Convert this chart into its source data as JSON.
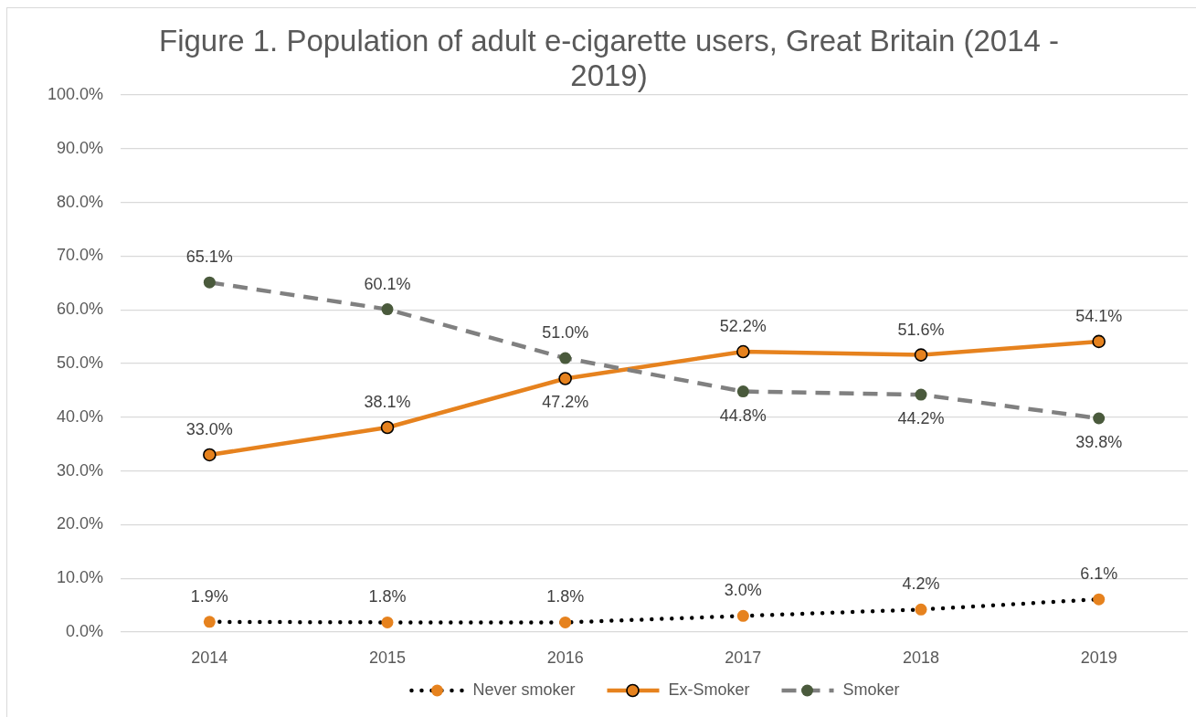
{
  "chart_data": {
    "type": "line",
    "title": "Figure 1. Population of adult e-cigarette users, Great Britain (2014 - 2019)",
    "categories": [
      "2014",
      "2015",
      "2016",
      "2017",
      "2018",
      "2019"
    ],
    "series": [
      {
        "name": "Never smoker",
        "color": "#000000",
        "colors": [
          "#e6821e",
          "#e6821e",
          "#e6821e",
          "#e6821e",
          "#e6821e",
          "#e6821e"
        ],
        "line_style": "dotted",
        "values": [
          1.9,
          1.8,
          1.8,
          3.0,
          4.2,
          6.1
        ],
        "value_labels": [
          "1.9%",
          "1.8%",
          "1.8%",
          "3.0%",
          "4.2%",
          "6.1%"
        ]
      },
      {
        "name": "Ex-Smoker",
        "color": "#e6821e",
        "line_style": "solid",
        "values": [
          33.0,
          38.1,
          47.2,
          52.2,
          51.6,
          54.1
        ],
        "value_labels": [
          "33.0%",
          "38.1%",
          "47.2%",
          "52.2%",
          "51.6%",
          "54.1%"
        ]
      },
      {
        "name": "Smoker",
        "color": "#808080",
        "colors": [
          "#4a5a3c",
          "#4a5a3c",
          "#4a5a3c",
          "#4a5a3c",
          "#4a5a3c",
          "#4a5a3c"
        ],
        "line_style": "dashed",
        "values": [
          65.1,
          60.1,
          51.0,
          44.8,
          44.2,
          39.8
        ],
        "value_labels": [
          "65.1%",
          "60.1%",
          "51.0%",
          "44.8%",
          "44.2%",
          "39.8%"
        ]
      }
    ],
    "ylim": [
      0,
      100
    ],
    "yticks": [
      {
        "value": 0,
        "label": "0.0%"
      },
      {
        "value": 10,
        "label": "10.0%"
      },
      {
        "value": 20,
        "label": "20.0%"
      },
      {
        "value": 30,
        "label": "30.0%"
      },
      {
        "value": 40,
        "label": "40.0%"
      },
      {
        "value": 50,
        "label": "50.0%"
      },
      {
        "value": 60,
        "label": "60.0%"
      },
      {
        "value": 70,
        "label": "70.0%"
      },
      {
        "value": 80,
        "label": "80.0%"
      },
      {
        "value": 90,
        "label": "90.0%"
      },
      {
        "value": 100,
        "label": "100.0%"
      }
    ],
    "grid": "y",
    "legend": "bottom",
    "marker": "circle"
  }
}
